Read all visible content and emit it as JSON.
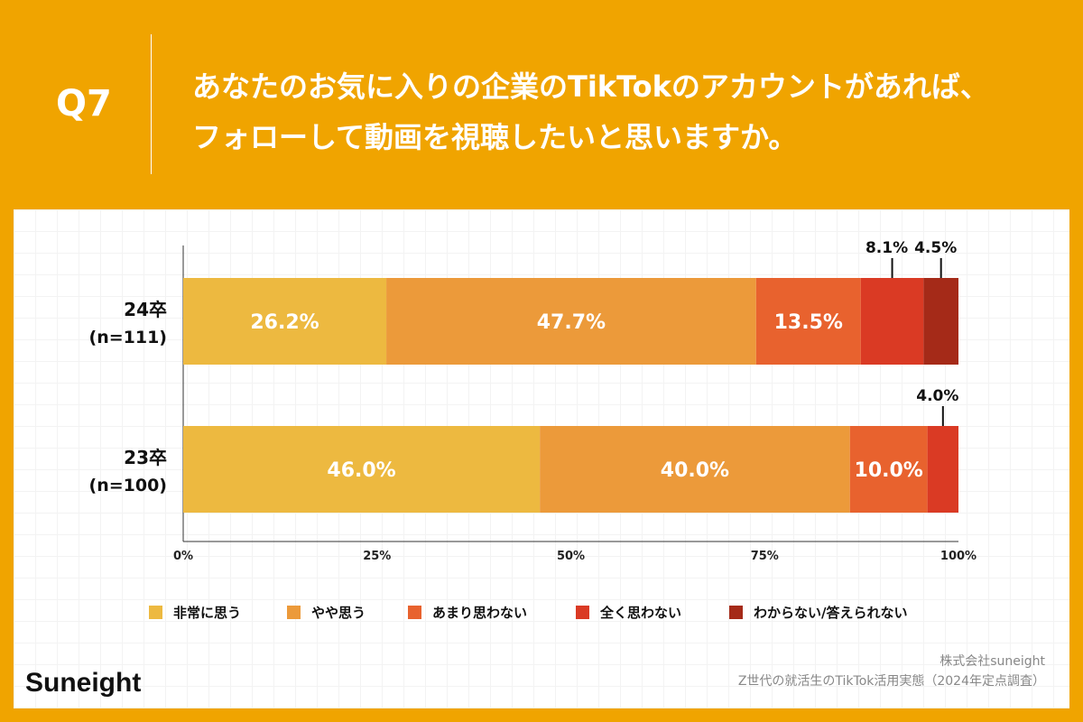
{
  "header": {
    "question": "Q7",
    "title": "あなたのお気に入りの企業のTikTokのアカウントがあれば、\nフォローして動画を視聴したいと思いますか。"
  },
  "footer": {
    "logo": "Suneight",
    "source_line1": "株式会社suneight",
    "source_line2": "Z世代の就活生のTikTok活用実態（2024年定点調査）"
  },
  "chart_data": {
    "type": "bar",
    "orientation": "horizontal",
    "stacked": true,
    "xlim": [
      0,
      100
    ],
    "x_ticks": [
      "0%",
      "25%",
      "50%",
      "75%",
      "100%"
    ],
    "categories": [
      {
        "label": "24卒",
        "sub": "(n=111)"
      },
      {
        "label": "23卒",
        "sub": "(n=100)"
      }
    ],
    "series": [
      {
        "name": "非常に思う",
        "color": "#EDB940",
        "values": [
          26.2,
          46.0
        ]
      },
      {
        "name": "やや思う",
        "color": "#EC9A3A",
        "values": [
          47.7,
          40.0
        ]
      },
      {
        "name": "あまり思わない",
        "color": "#E8622E",
        "values": [
          13.5,
          10.0
        ]
      },
      {
        "name": "全く思わない",
        "color": "#DA3A24",
        "values": [
          8.1,
          4.0
        ]
      },
      {
        "name": "わからない/答えられない",
        "color": "#A52A18",
        "values": [
          4.5,
          0
        ]
      }
    ],
    "legend_position": "bottom"
  }
}
